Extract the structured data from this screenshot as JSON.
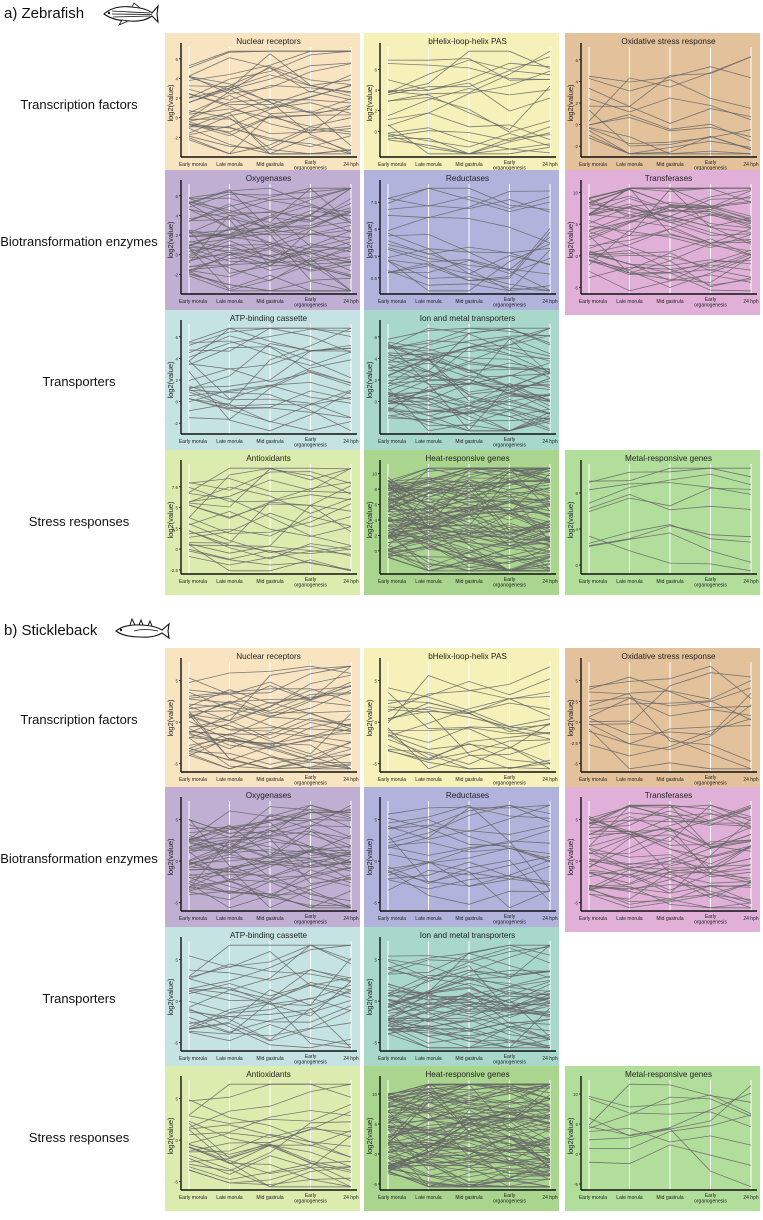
{
  "sections": [
    {
      "title": "a) Zebrafish"
    },
    {
      "title": "b) Stickleback"
    }
  ],
  "row_labels": [
    "Transcription factors",
    "Biotransformation enzymes",
    "Transporters",
    "Stress responses"
  ],
  "panel_titles": [
    [
      "Nuclear receptors",
      "bHelix-loop-helix PAS",
      "Oxidative stress response"
    ],
    [
      "Oxygenases",
      "Reductases",
      "Transferases"
    ],
    [
      "ATP-binding cassette",
      "Ion and metal transporters"
    ],
    [
      "Antioxidants",
      "Heat-responsive genes",
      "Metal-responsive genes"
    ]
  ],
  "x_categories": [
    "Early morula",
    "Late morula",
    "Mid gastrula",
    "Early organogenesis",
    "24 hph"
  ],
  "y_axis_label": "log2(value)",
  "colors": {
    "Nuclear receptors": "#f8e4c1",
    "bHelix-loop-helix PAS": "#f5f1b8",
    "Oxidative stress response": "#e3c19a",
    "Oxygenases": "#c1aed3",
    "Reductases": "#b1b3dc",
    "Transferases": "#e1b0d8",
    "ATP-binding cassette": "#c5e3e2",
    "Ion and metal transporters": "#a8d8ca",
    "Antioxidants": "#dcecae",
    "Heat-responsive genes": "#a9d58e",
    "Metal-responsive genes": "#b2de9c",
    "line": "#666666"
  },
  "chart_data": [
    {
      "type": "line",
      "organism": "Zebrafish",
      "category": "Transcription factors",
      "title": "Nuclear receptors",
      "ylabel": "log2(value)",
      "ylim": [
        -4,
        7
      ],
      "ticks": [
        -2,
        0,
        2,
        4,
        6
      ],
      "series_count": 35
    },
    {
      "type": "line",
      "organism": "Zebrafish",
      "category": "Transcription factors",
      "title": "bHelix-loop-helix PAS",
      "ylabel": "log2(value)",
      "ylim": [
        -2.5,
        8
      ],
      "ticks": [
        0,
        2,
        4,
        6
      ],
      "series_count": 20
    },
    {
      "type": "line",
      "organism": "Zebrafish",
      "category": "Transcription factors",
      "title": "Oxidative stress response",
      "ylabel": "log2(value)",
      "ylim": [
        -3,
        7
      ],
      "ticks": [
        -2,
        0,
        2,
        4,
        6
      ],
      "series_count": 14
    },
    {
      "type": "line",
      "organism": "Zebrafish",
      "category": "Biotransformation enzymes",
      "title": "Oxygenases",
      "ylabel": "log2(value)",
      "ylim": [
        -4,
        7
      ],
      "ticks": [
        -2,
        0,
        2,
        4,
        6
      ],
      "series_count": 50
    },
    {
      "type": "line",
      "organism": "Zebrafish",
      "category": "Biotransformation enzymes",
      "title": "Reductases",
      "ylabel": "log2(value)",
      "ylim": [
        -1,
        9
      ],
      "ticks": [
        0.5,
        2.5,
        5.0,
        7.5
      ],
      "series_count": 20
    },
    {
      "type": "line",
      "organism": "Zebrafish",
      "category": "Biotransformation enzymes",
      "title": "Transferases",
      "ylabel": "log2(value)",
      "ylim": [
        -6,
        11
      ],
      "ticks": [
        -5,
        0,
        5,
        10
      ],
      "series_count": 45
    },
    {
      "type": "line",
      "organism": "Zebrafish",
      "category": "Transporters",
      "title": "ATP-binding cassette",
      "ylabel": "log2(value)",
      "ylim": [
        -3,
        7
      ],
      "ticks": [
        -2,
        0,
        2,
        4,
        6
      ],
      "series_count": 25
    },
    {
      "type": "line",
      "organism": "Zebrafish",
      "category": "Transporters",
      "title": "Ion and metal transporters",
      "ylabel": "log2(value)",
      "ylim": [
        -3,
        7
      ],
      "ticks": [
        0,
        2,
        4,
        6
      ],
      "series_count": 55
    },
    {
      "type": "line",
      "organism": "Zebrafish",
      "category": "Stress responses",
      "title": "Antioxidants",
      "ylabel": "log2(value)",
      "ylim": [
        -3,
        10
      ],
      "ticks": [
        -2.5,
        0.0,
        2.5,
        5.0,
        7.5
      ],
      "series_count": 25
    },
    {
      "type": "line",
      "organism": "Zebrafish",
      "category": "Stress responses",
      "title": "Heat-responsive genes",
      "ylabel": "log2(value)",
      "ylim": [
        -3,
        11
      ],
      "ticks": [
        0,
        2,
        4,
        6,
        8,
        10
      ],
      "series_count": 100
    },
    {
      "type": "line",
      "organism": "Zebrafish",
      "category": "Stress responses",
      "title": "Metal-responsive genes",
      "ylabel": "log2(value)",
      "ylim": [
        -1,
        11
      ],
      "ticks": [
        0,
        4,
        8
      ],
      "series_count": 10
    },
    {
      "type": "line",
      "organism": "Stickleback",
      "category": "Transcription factors",
      "title": "Nuclear receptors",
      "ylabel": "log2(value)",
      "ylim": [
        -6,
        7
      ],
      "ticks": [
        -5,
        0,
        5
      ],
      "series_count": 40
    },
    {
      "type": "line",
      "organism": "Stickleback",
      "category": "Transcription factors",
      "title": "bHelix-loop-helix PAS",
      "ylabel": "log2(value)",
      "ylim": [
        -6,
        7
      ],
      "ticks": [
        -5,
        0,
        5
      ],
      "series_count": 22
    },
    {
      "type": "line",
      "organism": "Stickleback",
      "category": "Transcription factors",
      "title": "Oxidative stress response",
      "ylabel": "log2(value)",
      "ylim": [
        -6,
        7
      ],
      "ticks": [
        -5.0,
        -2.5,
        0.0,
        2.5,
        5.0
      ],
      "series_count": 14
    },
    {
      "type": "line",
      "organism": "Stickleback",
      "category": "Biotransformation enzymes",
      "title": "Oxygenases",
      "ylabel": "log2(value)",
      "ylim": [
        -6,
        7
      ],
      "ticks": [
        -5,
        0,
        5
      ],
      "series_count": 50
    },
    {
      "type": "line",
      "organism": "Stickleback",
      "category": "Biotransformation enzymes",
      "title": "Reductases",
      "ylabel": "log2(value)",
      "ylim": [
        -6,
        7
      ],
      "ticks": [
        -5,
        0,
        5
      ],
      "series_count": 22
    },
    {
      "type": "line",
      "organism": "Stickleback",
      "category": "Biotransformation enzymes",
      "title": "Transferases",
      "ylabel": "log2(value)",
      "ylim": [
        -6,
        7
      ],
      "ticks": [
        -5,
        0,
        5
      ],
      "series_count": 45
    },
    {
      "type": "line",
      "organism": "Stickleback",
      "category": "Transporters",
      "title": "ATP-binding cassette",
      "ylabel": "log2(value)",
      "ylim": [
        -6,
        7
      ],
      "ticks": [
        -5,
        0,
        5
      ],
      "series_count": 25
    },
    {
      "type": "line",
      "organism": "Stickleback",
      "category": "Transporters",
      "title": "Ion and metal transporters",
      "ylabel": "log2(value)",
      "ylim": [
        -6,
        7
      ],
      "ticks": [
        -5,
        0,
        5
      ],
      "series_count": 55
    },
    {
      "type": "line",
      "organism": "Stickleback",
      "category": "Stress responses",
      "title": "Antioxidants",
      "ylabel": "log2(value)",
      "ylim": [
        -6,
        7
      ],
      "ticks": [
        -5,
        0,
        5
      ],
      "series_count": 25
    },
    {
      "type": "line",
      "organism": "Stickleback",
      "category": "Stress responses",
      "title": "Heat-responsive genes",
      "ylabel": "log2(value)",
      "ylim": [
        -6,
        12
      ],
      "ticks": [
        -5,
        0,
        5,
        10
      ],
      "series_count": 100
    },
    {
      "type": "line",
      "organism": "Stickleback",
      "category": "Stress responses",
      "title": "Metal-responsive genes",
      "ylabel": "log2(value)",
      "ylim": [
        -6,
        12
      ],
      "ticks": [
        -5,
        0,
        5,
        10
      ],
      "series_count": 10
    }
  ]
}
